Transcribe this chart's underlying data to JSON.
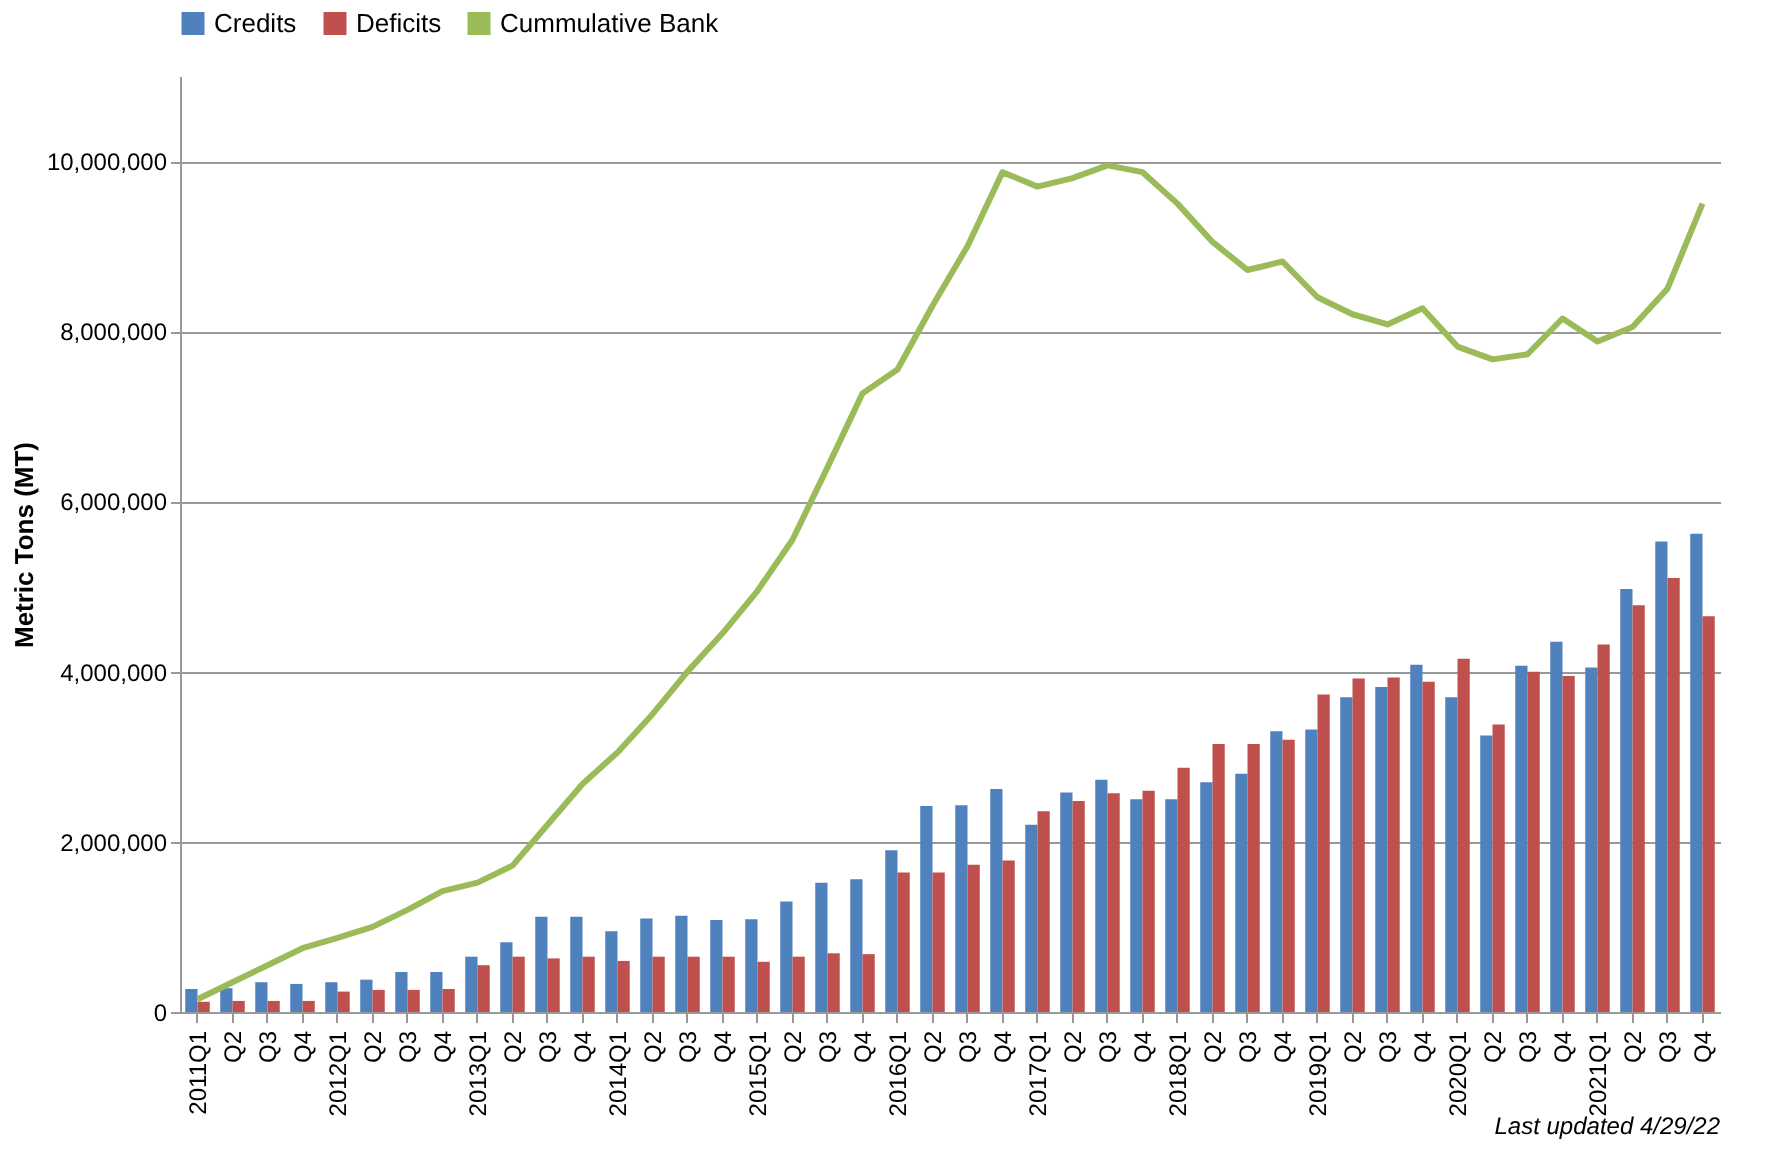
{
  "chart_data": {
    "type": "bar",
    "ylabel": "Metric Tons (MT)",
    "categories": [
      "2011Q1",
      "Q2",
      "Q3",
      "Q4",
      "2012Q1",
      "Q2",
      "Q3",
      "Q4",
      "2013Q1",
      "Q2",
      "Q3",
      "Q4",
      "2014Q1",
      "Q2",
      "Q3",
      "Q4",
      "2015Q1",
      "Q2",
      "Q3",
      "Q4",
      "2016Q1",
      "Q2",
      "Q3",
      "Q4",
      "2017Q1",
      "Q2",
      "Q3",
      "Q4",
      "2018Q1",
      "Q2",
      "Q3",
      "Q4",
      "2019Q1",
      "Q2",
      "Q3",
      "Q4",
      "2020Q1",
      "Q2",
      "Q3",
      "Q4",
      "2021Q1",
      "Q2",
      "Q3",
      "Q4"
    ],
    "series": [
      {
        "name": "Credits",
        "color": "#4f81bd",
        "values": [
          270000,
          280000,
          350000,
          330000,
          350000,
          380000,
          470000,
          470000,
          650000,
          820000,
          1120000,
          1120000,
          950000,
          1100000,
          1130000,
          1080000,
          1090000,
          1300000,
          1520000,
          1560000,
          1900000,
          2420000,
          2430000,
          2620000,
          2200000,
          2580000,
          2730000,
          2500000,
          2500000,
          2700000,
          2800000,
          3300000,
          3320000,
          3700000,
          3820000,
          4080000,
          3700000,
          3250000,
          4070000,
          4350000,
          4050000,
          4970000,
          5530000,
          5620000
        ]
      },
      {
        "name": "Deficits",
        "color": "#c0504d",
        "values": [
          120000,
          130000,
          130000,
          130000,
          240000,
          260000,
          260000,
          270000,
          550000,
          650000,
          630000,
          650000,
          600000,
          650000,
          650000,
          650000,
          590000,
          650000,
          690000,
          680000,
          1640000,
          1640000,
          1730000,
          1780000,
          2360000,
          2480000,
          2570000,
          2600000,
          2870000,
          3150000,
          3150000,
          3200000,
          3730000,
          3920000,
          3930000,
          3880000,
          4150000,
          3380000,
          4000000,
          3950000,
          4320000,
          4780000,
          5100000,
          4650000
        ]
      },
      {
        "name": "Cummulative Bank",
        "type": "line",
        "color": "#9bbb59",
        "values": [
          150000,
          350000,
          550000,
          750000,
          870000,
          1000000,
          1200000,
          1420000,
          1520000,
          1720000,
          2200000,
          2680000,
          3050000,
          3500000,
          4000000,
          4450000,
          4950000,
          5550000,
          6400000,
          7270000,
          7550000,
          8300000,
          9000000,
          9870000,
          9700000,
          9800000,
          9950000,
          9870000,
          9500000,
          9050000,
          8720000,
          8820000,
          8400000,
          8200000,
          8080000,
          8270000,
          7820000,
          7670000,
          7730000,
          8150000,
          7880000,
          8050000,
          8500000,
          9500000
        ]
      }
    ],
    "ylim": [
      0,
      11000000
    ],
    "yticks": [
      0,
      {
        "value": 2000000,
        "label": "2,000,000"
      },
      {
        "value": 4000000,
        "label": "4,000,000"
      },
      {
        "value": 6000000,
        "label": "6,000,000"
      },
      {
        "value": 8000000,
        "label": "8,000,000"
      },
      {
        "value": 10000000,
        "label": "10,000,000"
      }
    ],
    "grid": "y",
    "legend": "top",
    "marker": "none",
    "line_style": "solid",
    "annotations": [
      "Last updated 4/29/22"
    ]
  }
}
